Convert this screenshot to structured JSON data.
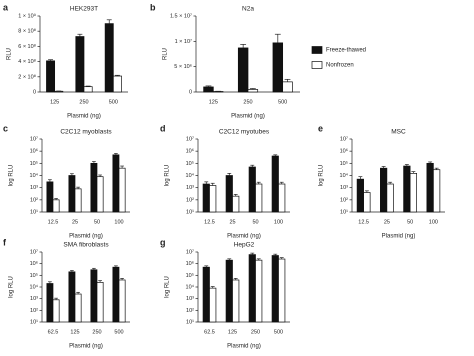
{
  "chart_data": [
    {
      "type": "bar",
      "label": "a",
      "title": "HEK293T",
      "y_label": "RLU",
      "x_label": "Plasmid (ng)",
      "log_scale": false,
      "categories": [
        "125",
        "250",
        "500"
      ],
      "series": [
        {
          "color": "#111111",
          "values": [
            410000000,
            730000000,
            900000000
          ],
          "errors": [
            15000000,
            30000000,
            50000000
          ]
        },
        {
          "color": "#ffffff",
          "values": [
            10000000,
            70000000,
            210000000
          ],
          "errors": [
            3000000,
            8000000,
            10000000
          ]
        }
      ],
      "ylim": [
        0,
        1000000000
      ],
      "yticks": [
        0,
        {
          "value": 200000000,
          "label": "2 × 10⁸"
        },
        {
          "value": 400000000,
          "label": "4 × 10⁸"
        },
        {
          "value": 600000000,
          "label": "6 × 10⁸"
        },
        {
          "value": 800000000,
          "label": "8 × 10⁸"
        },
        {
          "value": 1000000000,
          "label": "1 × 10⁹"
        }
      ]
    },
    {
      "type": "bar",
      "label": "b",
      "title": "N2a",
      "y_label": "RLU",
      "x_label": "Plasmid (ng)",
      "log_scale": false,
      "categories": [
        "125",
        "250",
        "500"
      ],
      "series": [
        {
          "name": "Freeze-thawed",
          "color": "#111111",
          "values": [
            1000000,
            8700000,
            9700000
          ],
          "errors": [
            200000,
            700000,
            1700000
          ]
        },
        {
          "name": "Nonfrozen",
          "color": "#ffffff",
          "values": [
            100000,
            500000,
            2000000
          ],
          "errors": [
            50000,
            200000,
            500000
          ]
        }
      ],
      "ylim": [
        0,
        15000000
      ],
      "yticks": [
        0,
        {
          "value": 5000000,
          "label": "5 × 10⁶"
        },
        {
          "value": 10000000,
          "label": "1 × 10⁷"
        },
        {
          "value": 15000000,
          "label": "1.5 × 10⁷"
        }
      ]
    },
    {
      "type": "bar",
      "label": "c",
      "title": "C2C12 myoblasts",
      "y_label": "log RLU",
      "x_label": "Plasmid (ng)",
      "log_scale": true,
      "categories": [
        "12.5",
        "25",
        "50",
        "100"
      ],
      "series": [
        {
          "color": "#111111",
          "values": [
            3000,
            10000,
            100000,
            500000
          ],
          "errors": [
            1500,
            4000,
            40000,
            150000
          ]
        },
        {
          "color": "#ffffff",
          "values": [
            100,
            800,
            8000,
            40000
          ],
          "errors": [
            30,
            300,
            3000,
            20000
          ]
        }
      ],
      "ylim": [
        10,
        10000000
      ],
      "yticks": [
        {
          "value": 10,
          "label": "10¹"
        },
        {
          "value": 100,
          "label": "10²"
        },
        {
          "value": 1000,
          "label": "10³"
        },
        {
          "value": 10000,
          "label": "10⁴"
        },
        {
          "value": 100000,
          "label": "10⁵"
        },
        {
          "value": 1000000,
          "label": "10⁶"
        },
        {
          "value": 10000000,
          "label": "10⁷"
        }
      ]
    },
    {
      "type": "bar",
      "label": "d",
      "title": "C2C12 myotubes",
      "y_label": "log RLU",
      "x_label": "Plasmid (ng)",
      "log_scale": true,
      "categories": [
        "12.5",
        "25",
        "50",
        "100"
      ],
      "series": [
        {
          "color": "#111111",
          "values": [
            2000,
            10000,
            50000,
            400000
          ],
          "errors": [
            1000,
            5000,
            20000,
            100000
          ]
        },
        {
          "color": "#ffffff",
          "values": [
            1500,
            200,
            2000,
            2000
          ],
          "errors": [
            800,
            80,
            800,
            800
          ]
        }
      ],
      "ylim": [
        10,
        10000000
      ],
      "yticks": [
        {
          "value": 10,
          "label": "10¹"
        },
        {
          "value": 100,
          "label": "10²"
        },
        {
          "value": 1000,
          "label": "10³"
        },
        {
          "value": 10000,
          "label": "10⁴"
        },
        {
          "value": 100000,
          "label": "10⁵"
        },
        {
          "value": 1000000,
          "label": "10⁶"
        },
        {
          "value": 10000000,
          "label": "10⁷"
        }
      ]
    },
    {
      "type": "bar",
      "label": "e",
      "title": "MSC",
      "y_label": "log RLU",
      "x_label": "Plasmid (ng)",
      "log_scale": true,
      "categories": [
        "12.5",
        "25",
        "50",
        "100"
      ],
      "series": [
        {
          "color": "#111111",
          "values": [
            5000,
            40000,
            60000,
            100000
          ],
          "errors": [
            3000,
            15000,
            20000,
            30000
          ]
        },
        {
          "color": "#ffffff",
          "values": [
            400,
            2000,
            15000,
            30000
          ],
          "errors": [
            150,
            800,
            6000,
            10000
          ]
        }
      ],
      "ylim": [
        10,
        10000000
      ],
      "yticks": [
        {
          "value": 10,
          "label": "10¹"
        },
        {
          "value": 100,
          "label": "10²"
        },
        {
          "value": 1000,
          "label": "10³"
        },
        {
          "value": 10000,
          "label": "10⁴"
        },
        {
          "value": 100000,
          "label": "10⁵"
        },
        {
          "value": 1000000,
          "label": "10⁶"
        },
        {
          "value": 10000000,
          "label": "10⁷"
        }
      ]
    },
    {
      "type": "bar",
      "label": "f",
      "title": "SMA fibroblasts",
      "y_label": "log RLU",
      "x_label": "Plasmid (ng)",
      "log_scale": true,
      "categories": [
        "62.5",
        "125",
        "250",
        "500"
      ],
      "series": [
        {
          "color": "#111111",
          "values": [
            20000,
            200000,
            300000,
            500000
          ],
          "errors": [
            8000,
            60000,
            100000,
            150000
          ]
        },
        {
          "color": "#ffffff",
          "values": [
            800,
            2500,
            25000,
            40000
          ],
          "errors": [
            300,
            1000,
            10000,
            15000
          ]
        }
      ],
      "ylim": [
        10,
        10000000
      ],
      "yticks": [
        {
          "value": 10,
          "label": "10¹"
        },
        {
          "value": 100,
          "label": "10²"
        },
        {
          "value": 1000,
          "label": "10³"
        },
        {
          "value": 10000,
          "label": "10⁴"
        },
        {
          "value": 100000,
          "label": "10⁵"
        },
        {
          "value": 1000000,
          "label": "10⁶"
        },
        {
          "value": 10000000,
          "label": "10⁷"
        }
      ]
    },
    {
      "type": "bar",
      "label": "g",
      "title": "HepG2",
      "y_label": "log RLU",
      "x_label": "Plasmid (ng)",
      "log_scale": true,
      "categories": [
        "62.5",
        "125",
        "250",
        "500"
      ],
      "series": [
        {
          "color": "#111111",
          "values": [
            500000,
            2000000,
            6000000,
            5000000
          ],
          "errors": [
            150000,
            600000,
            2000000,
            1500000
          ]
        },
        {
          "color": "#ffffff",
          "values": [
            8000,
            40000,
            2000000,
            2500000
          ],
          "errors": [
            3000,
            15000,
            600000,
            800000
          ]
        }
      ],
      "ylim": [
        10,
        10000000
      ],
      "yticks": [
        {
          "value": 10,
          "label": "10¹"
        },
        {
          "value": 100,
          "label": "10²"
        },
        {
          "value": 1000,
          "label": "10³"
        },
        {
          "value": 10000,
          "label": "10⁴"
        },
        {
          "value": 100000,
          "label": "10⁵"
        },
        {
          "value": 1000000,
          "label": "10⁶"
        },
        {
          "value": 10000000,
          "label": "10⁷"
        }
      ]
    }
  ]
}
